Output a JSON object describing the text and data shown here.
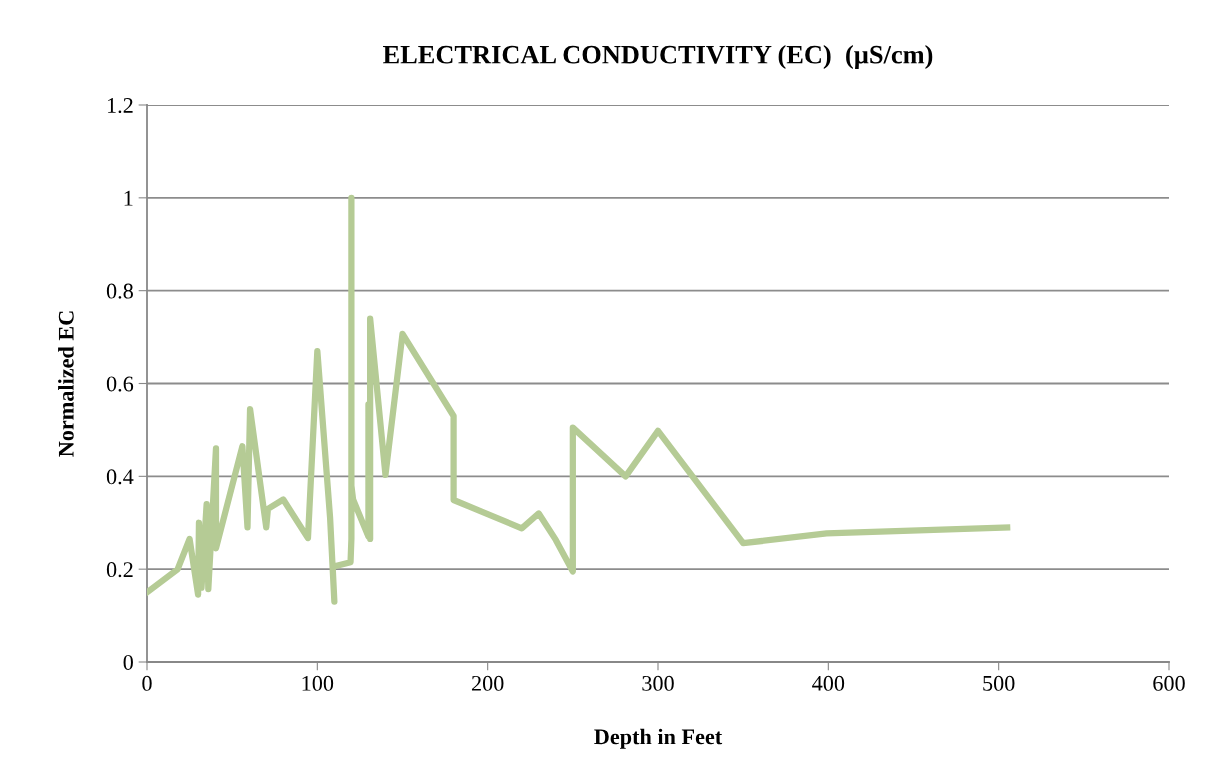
{
  "chart_data": {
    "type": "line",
    "title": "ELECTRICAL CONDUCTIVITY (EC)  (µS/cm)",
    "xlabel": "Depth in Feet",
    "ylabel": "Normalized EC",
    "grid": "y",
    "xlim": [
      0,
      600
    ],
    "xticks": [
      0,
      100,
      200,
      300,
      400,
      500,
      600
    ],
    "ylim": [
      0,
      1.2
    ],
    "yticks": [
      0,
      0.2,
      0.4,
      0.6,
      0.8,
      1,
      1.2
    ],
    "series": [
      {
        "color": "#b5cb95",
        "x": [
          0,
          18,
          25,
          30,
          30.5,
          32,
          35,
          36,
          40.5,
          40.5,
          56,
          59,
          60.5,
          70,
          71,
          80,
          94.5,
          100,
          107.5,
          110,
          109,
          119.5,
          120,
          120,
          120,
          120,
          120,
          120,
          120,
          121,
          130,
          130,
          131,
          131,
          140,
          150,
          180,
          180,
          220,
          230,
          240,
          250,
          250,
          250,
          281,
          300,
          350,
          399,
          505
        ],
        "values": [
          0.15,
          0.2,
          0.265,
          0.145,
          0.3,
          0.16,
          0.34,
          0.157,
          0.46,
          0.245,
          0.465,
          0.29,
          0.545,
          0.29,
          0.33,
          0.35,
          0.267,
          0.67,
          0.31,
          0.13,
          0.205,
          0.215,
          0.265,
          1.0,
          0.36,
          0.53,
          0.495,
          0.42,
          0.38,
          0.35,
          0.27,
          0.555,
          0.265,
          0.74,
          0.403,
          0.707,
          0.53,
          0.349,
          0.288,
          0.32,
          0.263,
          0.195,
          0.397,
          0.505,
          0.4,
          0.498,
          0.256,
          0.277,
          0.29
        ]
      }
    ]
  }
}
